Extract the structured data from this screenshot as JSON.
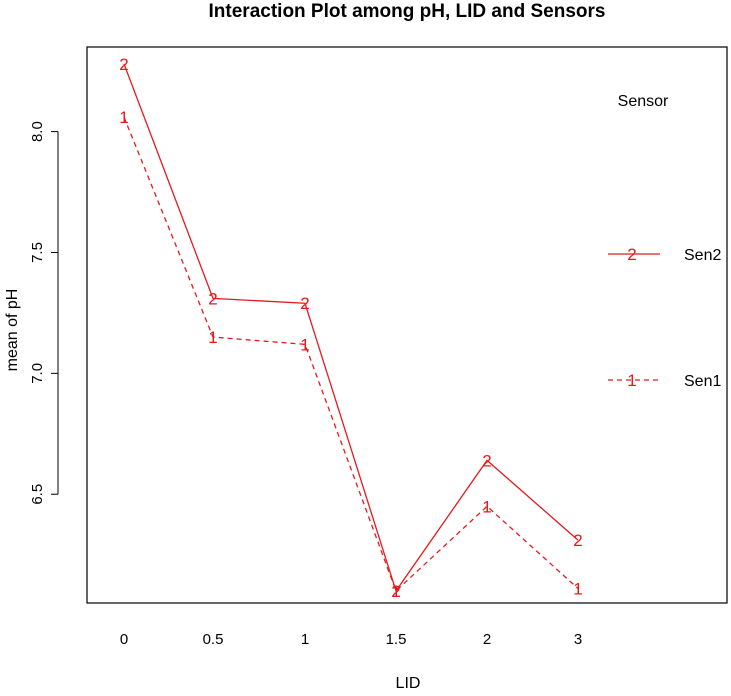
{
  "chart_data": {
    "type": "line",
    "title": "Interaction Plot among pH, LID and Sensors",
    "xlabel": "LID",
    "ylabel": "mean of  pH",
    "categories": [
      "0",
      "0.5",
      "1",
      "1.5",
      "2",
      "3"
    ],
    "yticks": [
      "6.5",
      "7.0",
      "7.5",
      "8.0"
    ],
    "ytick_values": [
      6.5,
      7.0,
      7.5,
      8.0
    ],
    "ylim": [
      6.05,
      8.35
    ],
    "legend_title": "Sensor",
    "legend_position": "right",
    "grid": false,
    "series": [
      {
        "name": "Sen2",
        "symbol": "2",
        "line_style": "solid",
        "color": "#e8191c",
        "values": [
          8.28,
          7.31,
          7.29,
          6.1,
          6.64,
          6.31
        ]
      },
      {
        "name": "Sen1",
        "symbol": "1",
        "line_style": "dashed",
        "color": "#e8191c",
        "values": [
          8.06,
          7.15,
          7.12,
          6.1,
          6.45,
          6.11
        ]
      }
    ]
  }
}
